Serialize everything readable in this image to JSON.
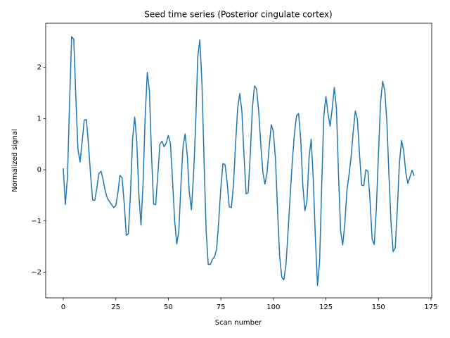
{
  "chart_data": {
    "type": "line",
    "title": "Seed time series (Posterior cingulate cortex)",
    "x_label": "Scan number",
    "y_label": "Normalized signal",
    "color": "#1f77b4",
    "x": [
      0,
      1,
      2,
      3,
      4,
      5,
      6,
      7,
      8,
      9,
      10,
      11,
      12,
      13,
      14,
      15,
      16,
      17,
      18,
      19,
      20,
      21,
      22,
      23,
      24,
      25,
      26,
      27,
      28,
      29,
      30,
      31,
      32,
      33,
      34,
      35,
      36,
      37,
      38,
      39,
      40,
      41,
      42,
      43,
      44,
      45,
      46,
      47,
      48,
      49,
      50,
      51,
      52,
      53,
      54,
      55,
      56,
      57,
      58,
      59,
      60,
      61,
      62,
      63,
      64,
      65,
      66,
      67,
      68,
      69,
      70,
      71,
      72,
      73,
      74,
      75,
      76,
      77,
      78,
      79,
      80,
      81,
      82,
      83,
      84,
      85,
      86,
      87,
      88,
      89,
      90,
      91,
      92,
      93,
      94,
      95,
      96,
      97,
      98,
      99,
      100,
      101,
      102,
      103,
      104,
      105,
      106,
      107,
      108,
      109,
      110,
      111,
      112,
      113,
      114,
      115,
      116,
      117,
      118,
      119,
      120,
      121,
      122,
      123,
      124,
      125,
      126,
      127,
      128,
      129,
      130,
      131,
      132,
      133,
      134,
      135,
      136,
      137,
      138,
      139,
      140,
      141,
      142,
      143,
      144,
      145,
      146,
      147,
      148,
      149,
      150,
      151,
      152,
      153,
      154,
      155,
      156,
      157,
      158,
      159,
      160,
      161,
      162,
      163,
      164,
      165,
      166,
      167
    ],
    "values": [
      0.03,
      -0.68,
      -0.15,
      1.3,
      2.6,
      2.55,
      1.4,
      0.4,
      0.15,
      0.55,
      0.97,
      0.98,
      0.5,
      -0.1,
      -0.59,
      -0.6,
      -0.35,
      -0.07,
      -0.03,
      -0.2,
      -0.42,
      -0.56,
      -0.62,
      -0.68,
      -0.74,
      -0.7,
      -0.45,
      -0.11,
      -0.16,
      -0.65,
      -1.28,
      -1.25,
      -0.45,
      0.6,
      1.03,
      0.55,
      -0.5,
      -1.08,
      -0.25,
      1.05,
      1.9,
      1.55,
      0.3,
      -0.67,
      -0.68,
      -0.1,
      0.5,
      0.56,
      0.45,
      0.52,
      0.67,
      0.52,
      -0.2,
      -0.98,
      -1.45,
      -1.2,
      -0.3,
      0.45,
      0.7,
      0.3,
      -0.45,
      -0.78,
      -0.1,
      0.85,
      2.2,
      2.54,
      1.7,
      0.2,
      -1.2,
      -1.85,
      -1.85,
      -1.75,
      -1.7,
      -1.55,
      -1.0,
      -0.35,
      0.12,
      0.1,
      -0.25,
      -0.72,
      -0.74,
      -0.3,
      0.5,
      1.2,
      1.49,
      1.15,
      0.3,
      -0.47,
      -0.45,
      0.3,
      1.2,
      1.64,
      1.58,
      1.15,
      0.5,
      -0.05,
      -0.28,
      -0.05,
      0.45,
      0.88,
      0.75,
      0.2,
      -0.8,
      -1.7,
      -2.1,
      -2.15,
      -1.85,
      -1.2,
      -0.5,
      0.15,
      0.7,
      1.05,
      1.1,
      0.6,
      -0.3,
      -0.8,
      -0.6,
      0.25,
      0.6,
      -0.2,
      -1.35,
      -2.26,
      -1.8,
      -0.3,
      1.05,
      1.43,
      1.1,
      0.85,
      1.2,
      1.61,
      1.2,
      -0.1,
      -1.2,
      -1.47,
      -1.05,
      -0.4,
      -0.1,
      0.25,
      0.75,
      1.15,
      0.98,
      0.3,
      -0.3,
      -0.31,
      0.0,
      -0.03,
      -0.6,
      -1.36,
      -1.46,
      -0.75,
      0.3,
      1.32,
      1.73,
      1.55,
      0.95,
      -0.1,
      -1.05,
      -1.6,
      -1.52,
      -0.75,
      0.15,
      0.57,
      0.37,
      -0.05,
      -0.27,
      -0.14,
      -0.01,
      -0.12
    ],
    "xlim": [
      -8.35,
      175.35
    ],
    "xticks": [
      0,
      25,
      50,
      75,
      100,
      125,
      150,
      175
    ],
    "ylim": [
      -2.503,
      2.863
    ],
    "yticks": [
      {
        "value": -2,
        "label": "−2"
      },
      {
        "value": -1,
        "label": "−1"
      },
      0,
      1,
      2
    ]
  }
}
